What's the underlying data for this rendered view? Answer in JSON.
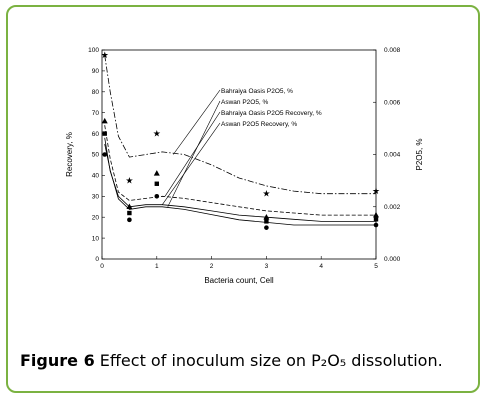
{
  "figure": {
    "caption_label": "Figure 6",
    "caption_text": "Effect of inoculum size on P₂O₅ dissolution."
  },
  "colors": {
    "border": "#7bb241",
    "ink": "#000000"
  },
  "chart_data": {
    "type": "line",
    "xlabel": "Bacteria count, Cell",
    "ylabel": "Recovery, %",
    "y2label": "P2O5, %",
    "xlim": [
      0,
      5
    ],
    "ylim": [
      0,
      100
    ],
    "y2lim": [
      0,
      0.008
    ],
    "x_ticks": [
      "0",
      "1",
      "2",
      "3",
      "4",
      "5"
    ],
    "y_ticks": [
      "0",
      "10",
      "20",
      "30",
      "40",
      "50",
      "60",
      "70",
      "80",
      "90",
      "100"
    ],
    "y2_ticks": [
      "0.000",
      "0.002",
      "0.004",
      "0.006",
      "0.008"
    ],
    "grid": false,
    "legend_position": "top-right inside plot",
    "series": [
      {
        "name": "Bahraiya Oasis P2O5, %",
        "axis": "right",
        "marker": "star",
        "line": "dash-dot",
        "points": [
          [
            0.05,
            0.0078
          ],
          [
            0.5,
            0.003
          ],
          [
            1.0,
            0.0048
          ],
          [
            3.0,
            0.0025
          ],
          [
            5.0,
            0.0026
          ]
        ],
        "curve": [
          [
            0.05,
            0.0078
          ],
          [
            0.15,
            0.0064
          ],
          [
            0.3,
            0.0047
          ],
          [
            0.5,
            0.0039
          ],
          [
            0.8,
            0.004
          ],
          [
            1.1,
            0.0041
          ],
          [
            1.5,
            0.004
          ],
          [
            2.0,
            0.0036
          ],
          [
            2.5,
            0.0031
          ],
          [
            3.0,
            0.0028
          ],
          [
            3.5,
            0.0026
          ],
          [
            4.0,
            0.0025
          ],
          [
            5.0,
            0.0025
          ]
        ]
      },
      {
        "name": "Aswan P2O5, %",
        "axis": "right",
        "marker": "circle",
        "line": "solid",
        "points": [
          [
            0.05,
            0.004
          ],
          [
            0.5,
            0.0015
          ],
          [
            1.0,
            0.0024
          ],
          [
            3.0,
            0.0012
          ],
          [
            5.0,
            0.0013
          ]
        ],
        "curve": [
          [
            0.05,
            0.0044
          ],
          [
            0.15,
            0.0034
          ],
          [
            0.3,
            0.0023
          ],
          [
            0.5,
            0.0019
          ],
          [
            0.8,
            0.002
          ],
          [
            1.1,
            0.002
          ],
          [
            1.5,
            0.0019
          ],
          [
            2.0,
            0.0017
          ],
          [
            2.5,
            0.0015
          ],
          [
            3.0,
            0.0014
          ],
          [
            3.5,
            0.0013
          ],
          [
            4.0,
            0.0013
          ],
          [
            5.0,
            0.0013
          ]
        ]
      },
      {
        "name": "Bahraiya Oasis P2O5 Recovery, %",
        "axis": "left",
        "marker": "triangle",
        "line": "dashed",
        "points": [
          [
            0.05,
            66
          ],
          [
            0.5,
            25
          ],
          [
            1.0,
            41
          ],
          [
            3.0,
            20
          ],
          [
            5.0,
            21
          ]
        ],
        "curve": [
          [
            0.05,
            64
          ],
          [
            0.15,
            48
          ],
          [
            0.3,
            32
          ],
          [
            0.5,
            28
          ],
          [
            0.8,
            29
          ],
          [
            1.1,
            30
          ],
          [
            1.5,
            29
          ],
          [
            2.0,
            27
          ],
          [
            2.5,
            25
          ],
          [
            3.0,
            23
          ],
          [
            3.5,
            22
          ],
          [
            4.0,
            21
          ],
          [
            5.0,
            21
          ]
        ]
      },
      {
        "name": "Aswan P2O5 Recovery, %",
        "axis": "left",
        "marker": "square",
        "line": "solid",
        "points": [
          [
            0.05,
            60
          ],
          [
            0.5,
            22
          ],
          [
            1.0,
            36
          ],
          [
            3.0,
            18
          ],
          [
            5.0,
            19
          ]
        ],
        "curve": [
          [
            0.05,
            58
          ],
          [
            0.15,
            42
          ],
          [
            0.3,
            30
          ],
          [
            0.5,
            25
          ],
          [
            0.8,
            26
          ],
          [
            1.1,
            26
          ],
          [
            1.5,
            25
          ],
          [
            2.0,
            23
          ],
          [
            2.5,
            21
          ],
          [
            3.0,
            20
          ],
          [
            3.5,
            19
          ],
          [
            4.0,
            18
          ],
          [
            5.0,
            18
          ]
        ]
      }
    ]
  }
}
